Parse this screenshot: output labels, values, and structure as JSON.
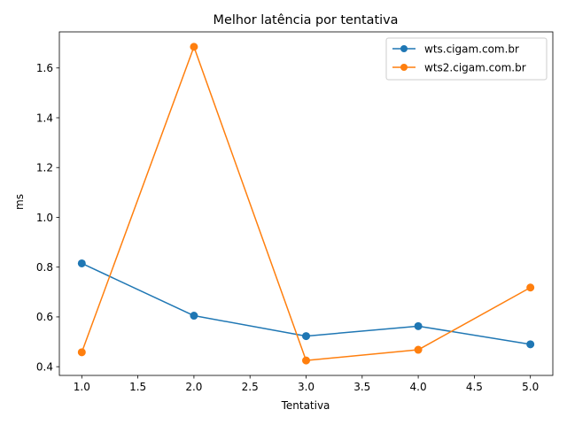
{
  "chart_data": {
    "type": "line",
    "title": "Melhor latência por tentativa",
    "xlabel": "Tentativa",
    "ylabel": "ms",
    "xlim": [
      0.8,
      5.2
    ],
    "ylim": [
      0.365,
      1.745
    ],
    "x_ticks": [
      1.0,
      1.5,
      2.0,
      2.5,
      3.0,
      3.5,
      4.0,
      4.5,
      5.0
    ],
    "x_tick_labels": [
      "1.0",
      "1.5",
      "2.0",
      "2.5",
      "3.0",
      "3.5",
      "4.0",
      "4.5",
      "5.0"
    ],
    "y_ticks": [
      0.4,
      0.6,
      0.8,
      1.0,
      1.2,
      1.4,
      1.6
    ],
    "y_tick_labels": [
      "0.4",
      "0.6",
      "0.8",
      "1.0",
      "1.2",
      "1.4",
      "1.6"
    ],
    "grid": false,
    "legend_position": "top-right",
    "series": [
      {
        "name": "wts.cigam.com.br",
        "color": "#1f77b4",
        "marker": "circle",
        "x": [
          1,
          2,
          3,
          4,
          5
        ],
        "y": [
          0.815,
          0.605,
          0.523,
          0.563,
          0.49
        ]
      },
      {
        "name": "wts2.cigam.com.br",
        "color": "#ff7f0e",
        "marker": "circle",
        "x": [
          1,
          2,
          3,
          4,
          5
        ],
        "y": [
          0.458,
          1.685,
          0.425,
          0.468,
          0.718
        ]
      }
    ]
  }
}
